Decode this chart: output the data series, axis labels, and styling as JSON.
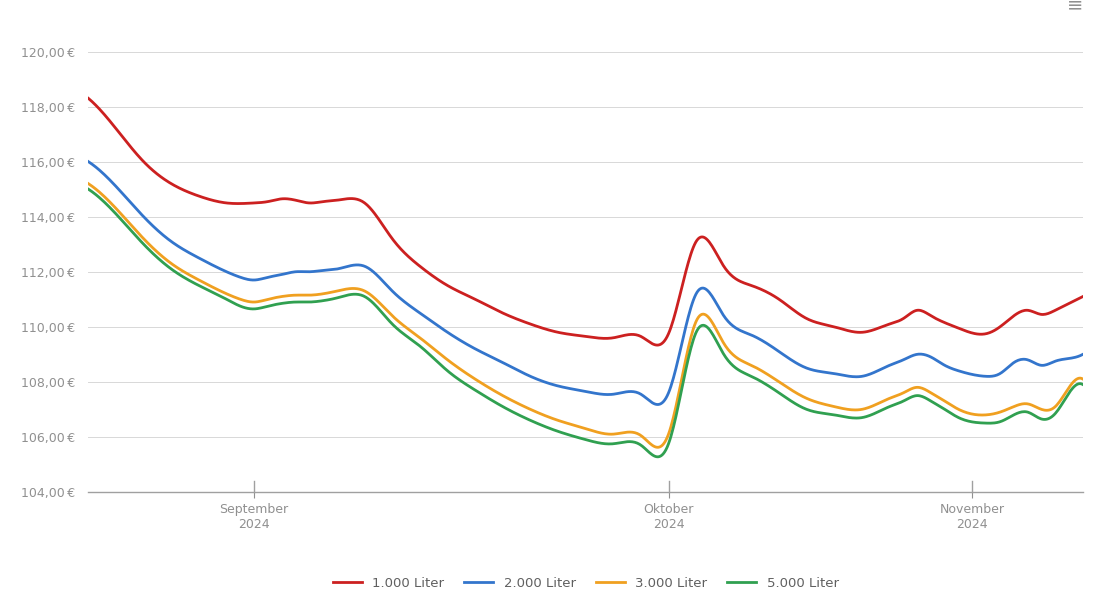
{
  "background_color": "#ffffff",
  "grid_color": "#d8d8d8",
  "ylim": [
    103.5,
    121.0
  ],
  "yticks": [
    104.0,
    106.0,
    108.0,
    110.0,
    112.0,
    114.0,
    116.0,
    118.0,
    120.0
  ],
  "xtick_labels": [
    "September\n2024",
    "Oktober\n2024",
    "November\n2024"
  ],
  "legend": [
    "1.000 Liter",
    "2.000 Liter",
    "3.000 Liter",
    "5.000 Liter"
  ],
  "line_colors": [
    "#cc2020",
    "#3375cc",
    "#f0a020",
    "#30a050"
  ],
  "line_width": 2.0,
  "series": {
    "red": [
      [
        0,
        118.3
      ],
      [
        4,
        117.2
      ],
      [
        8,
        116.0
      ],
      [
        12,
        115.2
      ],
      [
        16,
        114.75
      ],
      [
        20,
        114.5
      ],
      [
        24,
        114.5
      ],
      [
        26,
        114.55
      ],
      [
        28,
        114.65
      ],
      [
        30,
        114.6
      ],
      [
        32,
        114.5
      ],
      [
        34,
        114.55
      ],
      [
        36,
        114.6
      ],
      [
        40,
        114.5
      ],
      [
        44,
        113.2
      ],
      [
        48,
        112.2
      ],
      [
        52,
        111.5
      ],
      [
        56,
        111.0
      ],
      [
        60,
        110.5
      ],
      [
        64,
        110.1
      ],
      [
        68,
        109.8
      ],
      [
        72,
        109.65
      ],
      [
        76,
        109.6
      ],
      [
        80,
        109.65
      ],
      [
        84,
        109.75
      ],
      [
        88,
        113.1
      ],
      [
        92,
        112.2
      ],
      [
        96,
        111.5
      ],
      [
        100,
        111.0
      ],
      [
        104,
        110.3
      ],
      [
        108,
        110.0
      ],
      [
        112,
        109.8
      ],
      [
        116,
        110.1
      ],
      [
        118,
        110.3
      ],
      [
        120,
        110.6
      ],
      [
        122,
        110.4
      ],
      [
        124,
        110.15
      ],
      [
        126,
        109.95
      ],
      [
        130,
        109.75
      ],
      [
        132,
        110.0
      ],
      [
        134,
        110.4
      ],
      [
        136,
        110.6
      ],
      [
        138,
        110.45
      ],
      [
        140,
        110.6
      ],
      [
        142,
        110.85
      ],
      [
        144,
        111.1
      ]
    ],
    "blue": [
      [
        0,
        116.0
      ],
      [
        4,
        115.1
      ],
      [
        8,
        114.0
      ],
      [
        12,
        113.1
      ],
      [
        16,
        112.5
      ],
      [
        20,
        112.0
      ],
      [
        22,
        111.8
      ],
      [
        24,
        111.7
      ],
      [
        26,
        111.8
      ],
      [
        28,
        111.9
      ],
      [
        30,
        112.0
      ],
      [
        32,
        112.0
      ],
      [
        34,
        112.05
      ],
      [
        36,
        112.1
      ],
      [
        40,
        112.2
      ],
      [
        44,
        111.3
      ],
      [
        48,
        110.5
      ],
      [
        52,
        109.8
      ],
      [
        56,
        109.2
      ],
      [
        60,
        108.7
      ],
      [
        64,
        108.2
      ],
      [
        68,
        107.85
      ],
      [
        72,
        107.65
      ],
      [
        76,
        107.55
      ],
      [
        80,
        107.55
      ],
      [
        84,
        107.6
      ],
      [
        88,
        111.2
      ],
      [
        92,
        110.4
      ],
      [
        96,
        109.7
      ],
      [
        100,
        109.1
      ],
      [
        104,
        108.5
      ],
      [
        108,
        108.3
      ],
      [
        112,
        108.2
      ],
      [
        116,
        108.6
      ],
      [
        118,
        108.8
      ],
      [
        120,
        109.0
      ],
      [
        122,
        108.9
      ],
      [
        124,
        108.6
      ],
      [
        126,
        108.4
      ],
      [
        130,
        108.2
      ],
      [
        132,
        108.3
      ],
      [
        134,
        108.7
      ],
      [
        136,
        108.8
      ],
      [
        138,
        108.6
      ],
      [
        140,
        108.75
      ],
      [
        142,
        108.85
      ],
      [
        144,
        109.0
      ]
    ],
    "orange": [
      [
        0,
        115.2
      ],
      [
        4,
        114.3
      ],
      [
        8,
        113.2
      ],
      [
        12,
        112.3
      ],
      [
        16,
        111.7
      ],
      [
        20,
        111.2
      ],
      [
        22,
        111.0
      ],
      [
        24,
        110.9
      ],
      [
        26,
        111.0
      ],
      [
        28,
        111.1
      ],
      [
        30,
        111.15
      ],
      [
        32,
        111.15
      ],
      [
        34,
        111.2
      ],
      [
        36,
        111.3
      ],
      [
        40,
        111.3
      ],
      [
        44,
        110.4
      ],
      [
        48,
        109.6
      ],
      [
        52,
        108.8
      ],
      [
        56,
        108.1
      ],
      [
        60,
        107.5
      ],
      [
        64,
        107.0
      ],
      [
        68,
        106.6
      ],
      [
        72,
        106.3
      ],
      [
        76,
        106.1
      ],
      [
        80,
        106.05
      ],
      [
        84,
        106.1
      ],
      [
        88,
        110.2
      ],
      [
        92,
        109.4
      ],
      [
        96,
        108.6
      ],
      [
        100,
        108.0
      ],
      [
        104,
        107.4
      ],
      [
        108,
        107.1
      ],
      [
        112,
        107.0
      ],
      [
        116,
        107.4
      ],
      [
        118,
        107.6
      ],
      [
        120,
        107.8
      ],
      [
        122,
        107.6
      ],
      [
        124,
        107.3
      ],
      [
        126,
        107.0
      ],
      [
        130,
        106.8
      ],
      [
        132,
        106.9
      ],
      [
        134,
        107.1
      ],
      [
        136,
        107.2
      ],
      [
        138,
        107.0
      ],
      [
        140,
        107.1
      ],
      [
        142,
        107.8
      ],
      [
        144,
        108.1
      ]
    ],
    "green": [
      [
        0,
        115.0
      ],
      [
        4,
        114.1
      ],
      [
        8,
        113.0
      ],
      [
        12,
        112.1
      ],
      [
        16,
        111.5
      ],
      [
        20,
        111.0
      ],
      [
        22,
        110.75
      ],
      [
        24,
        110.65
      ],
      [
        26,
        110.75
      ],
      [
        28,
        110.85
      ],
      [
        30,
        110.9
      ],
      [
        32,
        110.9
      ],
      [
        34,
        110.95
      ],
      [
        36,
        111.05
      ],
      [
        40,
        111.1
      ],
      [
        44,
        110.1
      ],
      [
        48,
        109.3
      ],
      [
        52,
        108.4
      ],
      [
        56,
        107.7
      ],
      [
        60,
        107.1
      ],
      [
        64,
        106.6
      ],
      [
        68,
        106.2
      ],
      [
        72,
        105.9
      ],
      [
        76,
        105.75
      ],
      [
        80,
        105.7
      ],
      [
        84,
        105.75
      ],
      [
        88,
        109.8
      ],
      [
        92,
        109.0
      ],
      [
        96,
        108.2
      ],
      [
        100,
        107.6
      ],
      [
        104,
        107.0
      ],
      [
        108,
        106.8
      ],
      [
        112,
        106.7
      ],
      [
        116,
        107.1
      ],
      [
        118,
        107.3
      ],
      [
        120,
        107.5
      ],
      [
        122,
        107.3
      ],
      [
        124,
        107.0
      ],
      [
        126,
        106.7
      ],
      [
        130,
        106.5
      ],
      [
        132,
        106.55
      ],
      [
        134,
        106.8
      ],
      [
        136,
        106.9
      ],
      [
        138,
        106.65
      ],
      [
        140,
        106.85
      ],
      [
        142,
        107.6
      ],
      [
        144,
        107.9
      ]
    ]
  },
  "x_tick_positions": [
    24,
    84,
    128
  ],
  "x_range": [
    0,
    144
  ]
}
